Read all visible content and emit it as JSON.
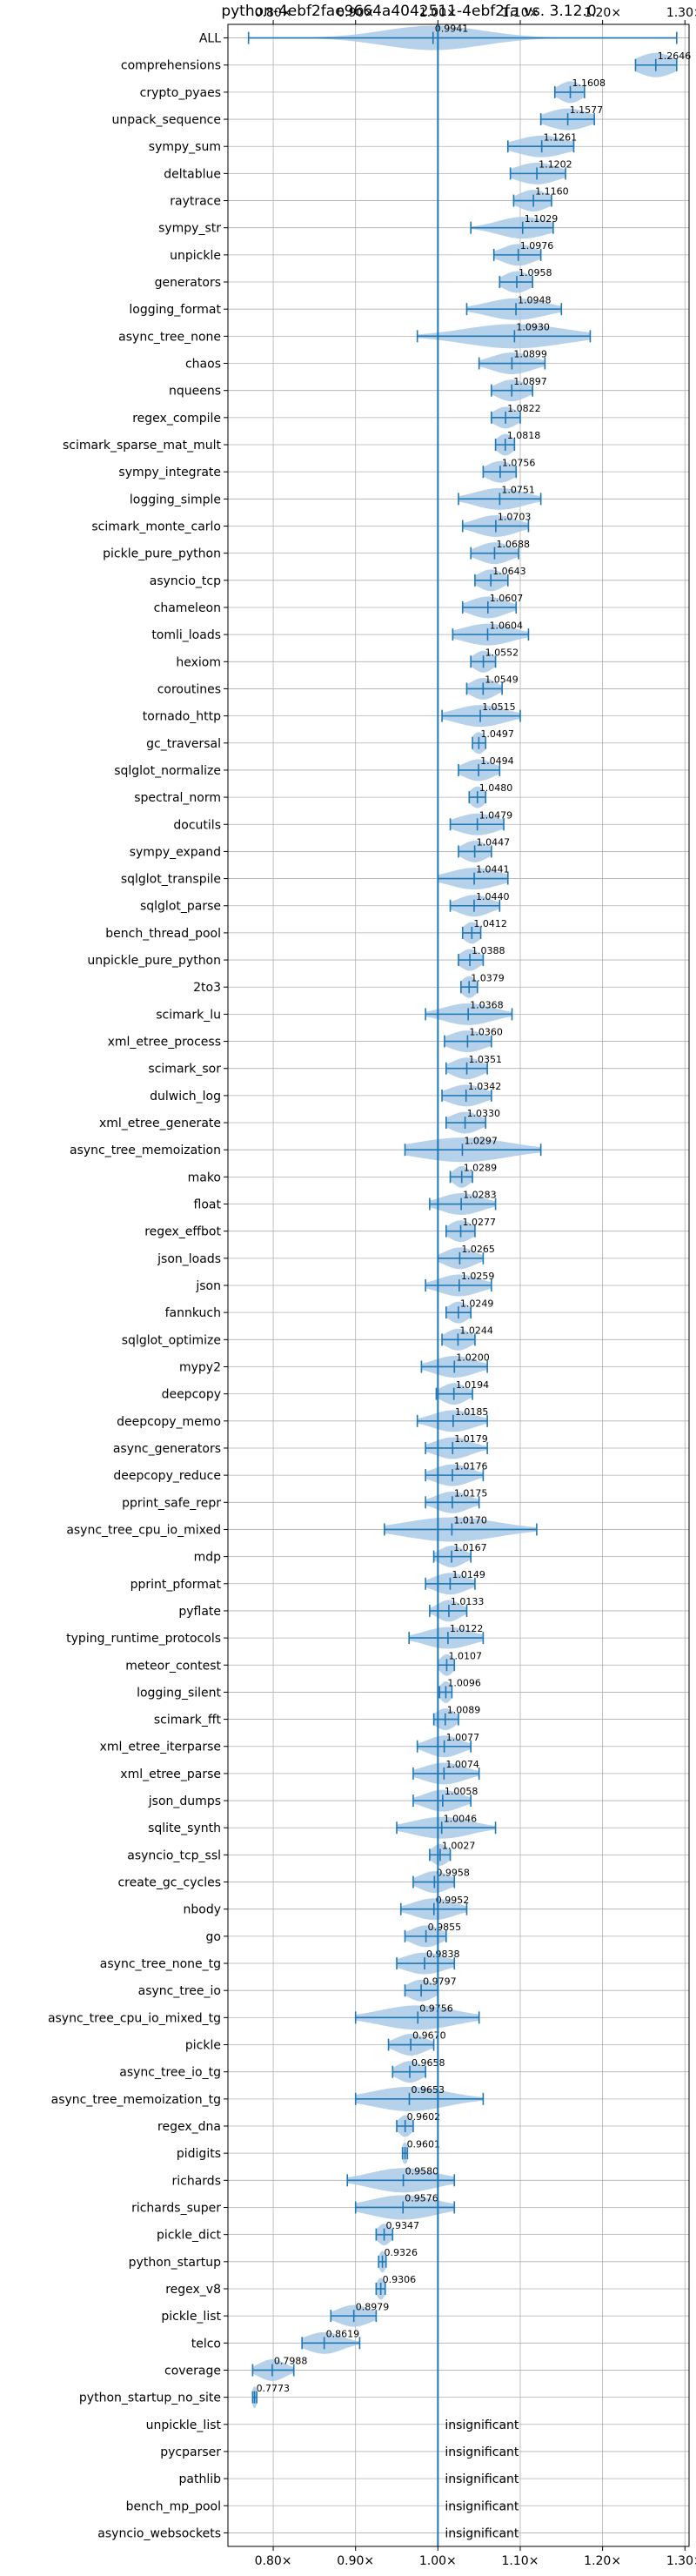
{
  "chart_data": {
    "type": "violin",
    "title": "python-4ebf2fae9664a4042511-4ebf2fa vs. 3.12.0",
    "xlim": [
      0.745,
      1.305
    ],
    "xticks": [
      {
        "value": 0.8,
        "label": "0.80×"
      },
      {
        "value": 0.9,
        "label": "0.90×"
      },
      {
        "value": 1.0,
        "label": "1.00×"
      },
      {
        "value": 1.1,
        "label": "1.10×"
      },
      {
        "value": 1.2,
        "label": "1.20×"
      },
      {
        "value": 1.3,
        "label": "1.30×"
      }
    ],
    "reference_line": 1.0,
    "grid": true,
    "insignificant_label": "insignificant",
    "colors": {
      "line": "#1f77b4",
      "violin": "#a9c9e6"
    },
    "benchmarks": [
      {
        "name": "ALL",
        "label": "0.9941",
        "center": 0.9941,
        "min": 0.77,
        "max": 1.29,
        "spread": 0.06,
        "height": 0.45
      },
      {
        "name": "comprehensions",
        "label": "1.2646",
        "center": 1.2646,
        "min": 1.24,
        "max": 1.29,
        "spread": 0.022,
        "height": 0.45
      },
      {
        "name": "crypto_pyaes",
        "label": "1.1608",
        "center": 1.1608,
        "min": 1.142,
        "max": 1.178,
        "spread": 0.014,
        "height": 0.4
      },
      {
        "name": "unpack_sequence",
        "label": "1.1577",
        "center": 1.1577,
        "min": 1.125,
        "max": 1.19,
        "spread": 0.025,
        "height": 0.4
      },
      {
        "name": "sympy_sum",
        "label": "1.1261",
        "center": 1.1261,
        "min": 1.085,
        "max": 1.165,
        "spread": 0.03,
        "height": 0.4
      },
      {
        "name": "deltablue",
        "label": "1.1202",
        "center": 1.1202,
        "min": 1.088,
        "max": 1.155,
        "spread": 0.025,
        "height": 0.4
      },
      {
        "name": "raytrace",
        "label": "1.1160",
        "center": 1.116,
        "min": 1.092,
        "max": 1.138,
        "spread": 0.018,
        "height": 0.4
      },
      {
        "name": "sympy_str",
        "label": "1.1029",
        "center": 1.1029,
        "min": 1.04,
        "max": 1.14,
        "spread": 0.03,
        "height": 0.4
      },
      {
        "name": "unpickle",
        "label": "1.0976",
        "center": 1.0976,
        "min": 1.068,
        "max": 1.125,
        "spread": 0.02,
        "height": 0.4
      },
      {
        "name": "generators",
        "label": "1.0958",
        "center": 1.0958,
        "min": 1.075,
        "max": 1.115,
        "spread": 0.016,
        "height": 0.4
      },
      {
        "name": "logging_format",
        "label": "1.0948",
        "center": 1.0948,
        "min": 1.035,
        "max": 1.15,
        "spread": 0.035,
        "height": 0.4
      },
      {
        "name": "async_tree_none",
        "label": "1.0930",
        "center": 1.093,
        "min": 0.975,
        "max": 1.185,
        "spread": 0.06,
        "height": 0.45
      },
      {
        "name": "chaos",
        "label": "1.0899",
        "center": 1.0899,
        "min": 1.05,
        "max": 1.13,
        "spread": 0.025,
        "height": 0.4
      },
      {
        "name": "nqueens",
        "label": "1.0897",
        "center": 1.0897,
        "min": 1.065,
        "max": 1.115,
        "spread": 0.018,
        "height": 0.4
      },
      {
        "name": "regex_compile",
        "label": "1.0822",
        "center": 1.0822,
        "min": 1.065,
        "max": 1.1,
        "spread": 0.014,
        "height": 0.4
      },
      {
        "name": "scimark_sparse_mat_mult",
        "label": "1.0818",
        "center": 1.0818,
        "min": 1.07,
        "max": 1.093,
        "spread": 0.01,
        "height": 0.4
      },
      {
        "name": "sympy_integrate",
        "label": "1.0756",
        "center": 1.0756,
        "min": 1.055,
        "max": 1.095,
        "spread": 0.016,
        "height": 0.4
      },
      {
        "name": "logging_simple",
        "label": "1.0751",
        "center": 1.0751,
        "min": 1.025,
        "max": 1.125,
        "spread": 0.03,
        "height": 0.4
      },
      {
        "name": "scimark_monte_carlo",
        "label": "1.0703",
        "center": 1.0703,
        "min": 1.03,
        "max": 1.11,
        "spread": 0.025,
        "height": 0.4
      },
      {
        "name": "pickle_pure_python",
        "label": "1.0688",
        "center": 1.0688,
        "min": 1.04,
        "max": 1.098,
        "spread": 0.02,
        "height": 0.4
      },
      {
        "name": "asyncio_tcp",
        "label": "1.0643",
        "center": 1.0643,
        "min": 1.045,
        "max": 1.085,
        "spread": 0.015,
        "height": 0.4
      },
      {
        "name": "chameleon",
        "label": "1.0607",
        "center": 1.0607,
        "min": 1.03,
        "max": 1.095,
        "spread": 0.022,
        "height": 0.4
      },
      {
        "name": "tomli_loads",
        "label": "1.0604",
        "center": 1.0604,
        "min": 1.018,
        "max": 1.11,
        "spread": 0.03,
        "height": 0.4
      },
      {
        "name": "hexiom",
        "label": "1.0552",
        "center": 1.0552,
        "min": 1.04,
        "max": 1.07,
        "spread": 0.012,
        "height": 0.4
      },
      {
        "name": "coroutines",
        "label": "1.0549",
        "center": 1.0549,
        "min": 1.035,
        "max": 1.078,
        "spread": 0.015,
        "height": 0.4
      },
      {
        "name": "tornado_http",
        "label": "1.0515",
        "center": 1.0515,
        "min": 1.005,
        "max": 1.1,
        "spread": 0.03,
        "height": 0.4
      },
      {
        "name": "gc_traversal",
        "label": "1.0497",
        "center": 1.0497,
        "min": 1.042,
        "max": 1.058,
        "spread": 0.008,
        "height": 0.4
      },
      {
        "name": "sqlglot_normalize",
        "label": "1.0494",
        "center": 1.0494,
        "min": 1.025,
        "max": 1.075,
        "spread": 0.018,
        "height": 0.4
      },
      {
        "name": "spectral_norm",
        "label": "1.0480",
        "center": 1.048,
        "min": 1.038,
        "max": 1.058,
        "spread": 0.009,
        "height": 0.4
      },
      {
        "name": "docutils",
        "label": "1.0479",
        "center": 1.0479,
        "min": 1.015,
        "max": 1.08,
        "spread": 0.025,
        "height": 0.4
      },
      {
        "name": "sympy_expand",
        "label": "1.0447",
        "center": 1.0447,
        "min": 1.025,
        "max": 1.065,
        "spread": 0.015,
        "height": 0.4
      },
      {
        "name": "sqlglot_transpile",
        "label": "1.0441",
        "center": 1.0441,
        "min": 1.0,
        "max": 1.085,
        "spread": 0.03,
        "height": 0.4
      },
      {
        "name": "sqlglot_parse",
        "label": "1.0440",
        "center": 1.044,
        "min": 1.015,
        "max": 1.075,
        "spread": 0.02,
        "height": 0.4
      },
      {
        "name": "bench_thread_pool",
        "label": "1.0412",
        "center": 1.0412,
        "min": 1.03,
        "max": 1.052,
        "spread": 0.01,
        "height": 0.4
      },
      {
        "name": "unpickle_pure_python",
        "label": "1.0388",
        "center": 1.0388,
        "min": 1.025,
        "max": 1.055,
        "spread": 0.012,
        "height": 0.4
      },
      {
        "name": "2to3",
        "label": "1.0379",
        "center": 1.0379,
        "min": 1.028,
        "max": 1.048,
        "spread": 0.009,
        "height": 0.4
      },
      {
        "name": "scimark_lu",
        "label": "1.0368",
        "center": 1.0368,
        "min": 0.985,
        "max": 1.09,
        "spread": 0.03,
        "height": 0.4
      },
      {
        "name": "xml_etree_process",
        "label": "1.0360",
        "center": 1.036,
        "min": 1.008,
        "max": 1.065,
        "spread": 0.022,
        "height": 0.4
      },
      {
        "name": "scimark_sor",
        "label": "1.0351",
        "center": 1.0351,
        "min": 1.01,
        "max": 1.06,
        "spread": 0.018,
        "height": 0.4
      },
      {
        "name": "dulwich_log",
        "label": "1.0342",
        "center": 1.0342,
        "min": 1.005,
        "max": 1.065,
        "spread": 0.022,
        "height": 0.4
      },
      {
        "name": "xml_etree_generate",
        "label": "1.0330",
        "center": 1.033,
        "min": 1.01,
        "max": 1.058,
        "spread": 0.018,
        "height": 0.4
      },
      {
        "name": "async_tree_memoization",
        "label": "1.0297",
        "center": 1.0297,
        "min": 0.96,
        "max": 1.125,
        "spread": 0.055,
        "height": 0.45
      },
      {
        "name": "mako",
        "label": "1.0289",
        "center": 1.0289,
        "min": 1.015,
        "max": 1.042,
        "spread": 0.01,
        "height": 0.4
      },
      {
        "name": "float",
        "label": "1.0283",
        "center": 1.0283,
        "min": 0.99,
        "max": 1.07,
        "spread": 0.025,
        "height": 0.4
      },
      {
        "name": "regex_effbot",
        "label": "1.0277",
        "center": 1.0277,
        "min": 1.01,
        "max": 1.045,
        "spread": 0.014,
        "height": 0.4
      },
      {
        "name": "json_loads",
        "label": "1.0265",
        "center": 1.0265,
        "min": 1.0,
        "max": 1.055,
        "spread": 0.018,
        "height": 0.4
      },
      {
        "name": "json",
        "label": "1.0259",
        "center": 1.0259,
        "min": 0.985,
        "max": 1.065,
        "spread": 0.025,
        "height": 0.4
      },
      {
        "name": "fannkuch",
        "label": "1.0249",
        "center": 1.0249,
        "min": 1.01,
        "max": 1.04,
        "spread": 0.012,
        "height": 0.4
      },
      {
        "name": "sqlglot_optimize",
        "label": "1.0244",
        "center": 1.0244,
        "min": 1.005,
        "max": 1.045,
        "spread": 0.015,
        "height": 0.4
      },
      {
        "name": "mypy2",
        "label": "1.0200",
        "center": 1.02,
        "min": 0.98,
        "max": 1.06,
        "spread": 0.025,
        "height": 0.4
      },
      {
        "name": "deepcopy",
        "label": "1.0194",
        "center": 1.0194,
        "min": 0.998,
        "max": 1.042,
        "spread": 0.015,
        "height": 0.4
      },
      {
        "name": "deepcopy_memo",
        "label": "1.0185",
        "center": 1.0185,
        "min": 0.975,
        "max": 1.06,
        "spread": 0.025,
        "height": 0.4
      },
      {
        "name": "async_generators",
        "label": "1.0179",
        "center": 1.0179,
        "min": 0.985,
        "max": 1.06,
        "spread": 0.022,
        "height": 0.4
      },
      {
        "name": "deepcopy_reduce",
        "label": "1.0176",
        "center": 1.0176,
        "min": 0.985,
        "max": 1.055,
        "spread": 0.022,
        "height": 0.4
      },
      {
        "name": "pprint_safe_repr",
        "label": "1.0175",
        "center": 1.0175,
        "min": 0.985,
        "max": 1.05,
        "spread": 0.02,
        "height": 0.4
      },
      {
        "name": "async_tree_cpu_io_mixed",
        "label": "1.0170",
        "center": 1.017,
        "min": 0.935,
        "max": 1.12,
        "spread": 0.055,
        "height": 0.45
      },
      {
        "name": "mdp",
        "label": "1.0167",
        "center": 1.0167,
        "min": 0.995,
        "max": 1.04,
        "spread": 0.015,
        "height": 0.4
      },
      {
        "name": "pprint_pformat",
        "label": "1.0149",
        "center": 1.0149,
        "min": 0.985,
        "max": 1.045,
        "spread": 0.02,
        "height": 0.4
      },
      {
        "name": "pyflate",
        "label": "1.0133",
        "center": 1.0133,
        "min": 0.99,
        "max": 1.035,
        "spread": 0.014,
        "height": 0.4
      },
      {
        "name": "typing_runtime_protocols",
        "label": "1.0122",
        "center": 1.0122,
        "min": 0.965,
        "max": 1.055,
        "spread": 0.028,
        "height": 0.4
      },
      {
        "name": "meteor_contest",
        "label": "1.0107",
        "center": 1.0107,
        "min": 1.0,
        "max": 1.02,
        "spread": 0.008,
        "height": 0.4
      },
      {
        "name": "logging_silent",
        "label": "1.0096",
        "center": 1.0096,
        "min": 1.002,
        "max": 1.017,
        "spread": 0.007,
        "height": 0.4
      },
      {
        "name": "scimark_fft",
        "label": "1.0089",
        "center": 1.0089,
        "min": 0.995,
        "max": 1.025,
        "spread": 0.012,
        "height": 0.4
      },
      {
        "name": "xml_etree_iterparse",
        "label": "1.0077",
        "center": 1.0077,
        "min": 0.975,
        "max": 1.04,
        "spread": 0.02,
        "height": 0.4
      },
      {
        "name": "xml_etree_parse",
        "label": "1.0074",
        "center": 1.0074,
        "min": 0.97,
        "max": 1.05,
        "spread": 0.025,
        "height": 0.4
      },
      {
        "name": "json_dumps",
        "label": "1.0058",
        "center": 1.0058,
        "min": 0.97,
        "max": 1.04,
        "spread": 0.022,
        "height": 0.4
      },
      {
        "name": "sqlite_synth",
        "label": "1.0046",
        "center": 1.0046,
        "min": 0.95,
        "max": 1.07,
        "spread": 0.035,
        "height": 0.4
      },
      {
        "name": "asyncio_tcp_ssl",
        "label": "1.0027",
        "center": 1.0027,
        "min": 0.99,
        "max": 1.015,
        "spread": 0.01,
        "height": 0.4
      },
      {
        "name": "create_gc_cycles",
        "label": "0.9958",
        "center": 0.9958,
        "min": 0.97,
        "max": 1.02,
        "spread": 0.018,
        "height": 0.4
      },
      {
        "name": "nbody",
        "label": "0.9952",
        "center": 0.9952,
        "min": 0.955,
        "max": 1.035,
        "spread": 0.025,
        "height": 0.4
      },
      {
        "name": "go",
        "label": "0.9855",
        "center": 0.9855,
        "min": 0.96,
        "max": 1.01,
        "spread": 0.018,
        "height": 0.4
      },
      {
        "name": "async_tree_none_tg",
        "label": "0.9838",
        "center": 0.9838,
        "min": 0.95,
        "max": 1.02,
        "spread": 0.025,
        "height": 0.4
      },
      {
        "name": "async_tree_io",
        "label": "0.9797",
        "center": 0.9797,
        "min": 0.96,
        "max": 1.0,
        "spread": 0.016,
        "height": 0.4
      },
      {
        "name": "async_tree_cpu_io_mixed_tg",
        "label": "0.9756",
        "center": 0.9756,
        "min": 0.9,
        "max": 1.05,
        "spread": 0.045,
        "height": 0.45
      },
      {
        "name": "pickle",
        "label": "0.9670",
        "center": 0.967,
        "min": 0.94,
        "max": 0.995,
        "spread": 0.018,
        "height": 0.4
      },
      {
        "name": "async_tree_io_tg",
        "label": "0.9658",
        "center": 0.9658,
        "min": 0.945,
        "max": 0.985,
        "spread": 0.015,
        "height": 0.4
      },
      {
        "name": "async_tree_memoization_tg",
        "label": "0.9653",
        "center": 0.9653,
        "min": 0.9,
        "max": 1.055,
        "spread": 0.045,
        "height": 0.45
      },
      {
        "name": "regex_dna",
        "label": "0.9602",
        "center": 0.9602,
        "min": 0.95,
        "max": 0.97,
        "spread": 0.008,
        "height": 0.4
      },
      {
        "name": "pidigits",
        "label": "0.9601",
        "center": 0.9601,
        "min": 0.957,
        "max": 0.963,
        "spread": 0.004,
        "height": 0.4
      },
      {
        "name": "richards",
        "label": "0.9580",
        "center": 0.958,
        "min": 0.89,
        "max": 1.02,
        "spread": 0.04,
        "height": 0.45
      },
      {
        "name": "richards_super",
        "label": "0.9576",
        "center": 0.9576,
        "min": 0.9,
        "max": 1.02,
        "spread": 0.04,
        "height": 0.45
      },
      {
        "name": "pickle_dict",
        "label": "0.9347",
        "center": 0.9347,
        "min": 0.925,
        "max": 0.945,
        "spread": 0.008,
        "height": 0.4
      },
      {
        "name": "python_startup",
        "label": "0.9326",
        "center": 0.9326,
        "min": 0.928,
        "max": 0.937,
        "spread": 0.004,
        "height": 0.4
      },
      {
        "name": "regex_v8",
        "label": "0.9306",
        "center": 0.9306,
        "min": 0.925,
        "max": 0.936,
        "spread": 0.005,
        "height": 0.4
      },
      {
        "name": "pickle_list",
        "label": "0.8979",
        "center": 0.8979,
        "min": 0.87,
        "max": 0.925,
        "spread": 0.02,
        "height": 0.4
      },
      {
        "name": "telco",
        "label": "0.8619",
        "center": 0.8619,
        "min": 0.835,
        "max": 0.905,
        "spread": 0.022,
        "height": 0.4
      },
      {
        "name": "coverage",
        "label": "0.7988",
        "center": 0.7988,
        "min": 0.775,
        "max": 0.825,
        "spread": 0.016,
        "height": 0.4
      },
      {
        "name": "python_startup_no_site",
        "label": "0.7773",
        "center": 0.7773,
        "min": 0.775,
        "max": 0.78,
        "spread": 0.003,
        "height": 0.4
      },
      {
        "name": "unpickle_list",
        "insignificant": true
      },
      {
        "name": "pycparser",
        "insignificant": true
      },
      {
        "name": "pathlib",
        "insignificant": true
      },
      {
        "name": "bench_mp_pool",
        "insignificant": true
      },
      {
        "name": "asyncio_websockets",
        "insignificant": true
      }
    ]
  }
}
